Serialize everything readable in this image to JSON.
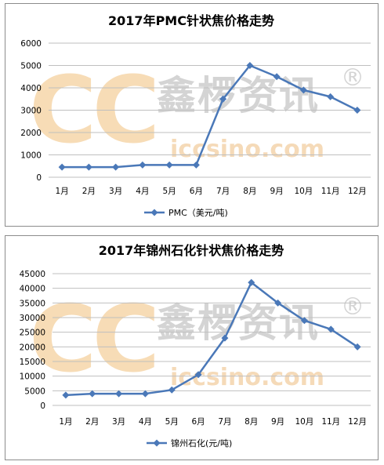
{
  "watermark": {
    "logo": "CC",
    "brand": "鑫椤资讯",
    "url": "iccsino.com",
    "reg": "®"
  },
  "colors": {
    "series": "#4a78b8",
    "grid": "#bfbfbf",
    "watermark_logo": "#f7dcb6",
    "watermark_text": "#d4d4d4"
  },
  "chart_data": [
    {
      "type": "line",
      "title": "2017年PMC针状焦价格走势",
      "categories": [
        "1月",
        "2月",
        "3月",
        "4月",
        "5月",
        "6月",
        "7月",
        "8月",
        "9月",
        "10月",
        "11月",
        "12月"
      ],
      "series": [
        {
          "name": "PMC（美元/吨)",
          "values": [
            450,
            450,
            450,
            550,
            550,
            550,
            3500,
            5000,
            4500,
            3900,
            3600,
            3000
          ]
        }
      ],
      "ylim": [
        0,
        6000
      ],
      "yticks": [
        "0",
        "1000",
        "2000",
        "3000",
        "4000",
        "5000",
        "6000"
      ],
      "grid": true,
      "legend": "bottom",
      "marker": "diamond"
    },
    {
      "type": "line",
      "title": "2017年锦州石化针状焦价格走势",
      "categories": [
        "1月",
        "2月",
        "3月",
        "4月",
        "5月",
        "6月",
        "7月",
        "8月",
        "9月",
        "10月",
        "11月",
        "12月"
      ],
      "series": [
        {
          "name": "锦州石化(元/吨)",
          "values": [
            3500,
            4000,
            4000,
            4000,
            5300,
            10500,
            23000,
            42000,
            35000,
            29000,
            26000,
            20000
          ]
        }
      ],
      "ylim": [
        0,
        45000
      ],
      "yticks": [
        "0",
        "5000",
        "10000",
        "15000",
        "20000",
        "25000",
        "30000",
        "35000",
        "40000",
        "45000"
      ],
      "grid": true,
      "legend": "bottom",
      "marker": "diamond"
    }
  ]
}
